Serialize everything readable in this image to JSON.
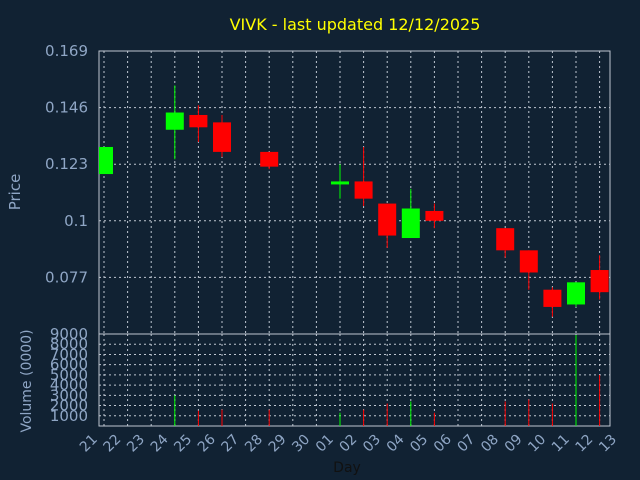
{
  "chart_data": {
    "type": "candlestick",
    "title": "VIVK - last updated 12/12/2025",
    "xlabel": "Day",
    "ylabel": "Price",
    "volume_label": "Volume (0000)",
    "x_ticks": [
      "21",
      "22",
      "23",
      "24",
      "25",
      "26",
      "27",
      "28",
      "29",
      "30",
      "01",
      "02",
      "03",
      "04",
      "05",
      "06",
      "07",
      "08",
      "09",
      "10",
      "11",
      "12",
      "13"
    ],
    "y_ticks": [
      0.077,
      0.1,
      0.123,
      0.146,
      0.169
    ],
    "y_tick_labels": [
      "0.077",
      "0.1",
      "0.123",
      "0.146",
      "0.169"
    ],
    "ylim": [
      0.054,
      0.169
    ],
    "volume_ticks": [
      1000,
      2000,
      3000,
      4000,
      5000,
      6000,
      7000,
      8000,
      9000
    ],
    "volume_tick_labels": [
      "1000",
      "2000",
      "3000",
      "4000",
      "5000",
      "6000",
      "7000",
      "8000",
      "9000"
    ],
    "volume_lim": [
      0,
      9000
    ],
    "grid": true,
    "colors": {
      "background": "#112233",
      "plot_background": "#112233",
      "grid": "#bfc7d2",
      "up": "#00ff00",
      "down": "#ff0000",
      "title": "#ffff00",
      "text": "#8fa6c5"
    },
    "candles": [
      {
        "day": "21",
        "open": 0.119,
        "high": 0.13,
        "low": 0.119,
        "close": 0.13,
        "volume": 0
      },
      {
        "day": "24",
        "open": 0.137,
        "high": 0.155,
        "low": 0.125,
        "close": 0.144,
        "volume": 3000
      },
      {
        "day": "25",
        "open": 0.143,
        "high": 0.147,
        "low": 0.132,
        "close": 0.138,
        "volume": 1500
      },
      {
        "day": "26",
        "open": 0.14,
        "high": 0.143,
        "low": 0.126,
        "close": 0.128,
        "volume": 1600
      },
      {
        "day": "28",
        "open": 0.128,
        "high": 0.128,
        "low": 0.121,
        "close": 0.122,
        "volume": 1600
      },
      {
        "day": "01",
        "open": 0.115,
        "high": 0.123,
        "low": 0.109,
        "close": 0.116,
        "volume": 1300
      },
      {
        "day": "02",
        "open": 0.116,
        "high": 0.13,
        "low": 0.106,
        "close": 0.109,
        "volume": 1600
      },
      {
        "day": "03",
        "open": 0.107,
        "high": 0.107,
        "low": 0.089,
        "close": 0.094,
        "volume": 2200
      },
      {
        "day": "04",
        "open": 0.093,
        "high": 0.113,
        "low": 0.093,
        "close": 0.105,
        "volume": 2400
      },
      {
        "day": "05",
        "open": 0.104,
        "high": 0.107,
        "low": 0.097,
        "close": 0.1,
        "volume": 1300
      },
      {
        "day": "08",
        "open": 0.097,
        "high": 0.097,
        "low": 0.085,
        "close": 0.088,
        "volume": 2400
      },
      {
        "day": "09",
        "open": 0.088,
        "high": 0.088,
        "low": 0.072,
        "close": 0.079,
        "volume": 2600
      },
      {
        "day": "10",
        "open": 0.072,
        "high": 0.073,
        "low": 0.061,
        "close": 0.065,
        "volume": 2200
      },
      {
        "day": "11",
        "open": 0.066,
        "high": 0.075,
        "low": 0.065,
        "close": 0.075,
        "volume": 8900
      },
      {
        "day": "12",
        "open": 0.08,
        "high": 0.086,
        "low": 0.068,
        "close": 0.071,
        "volume": 5000
      }
    ]
  }
}
